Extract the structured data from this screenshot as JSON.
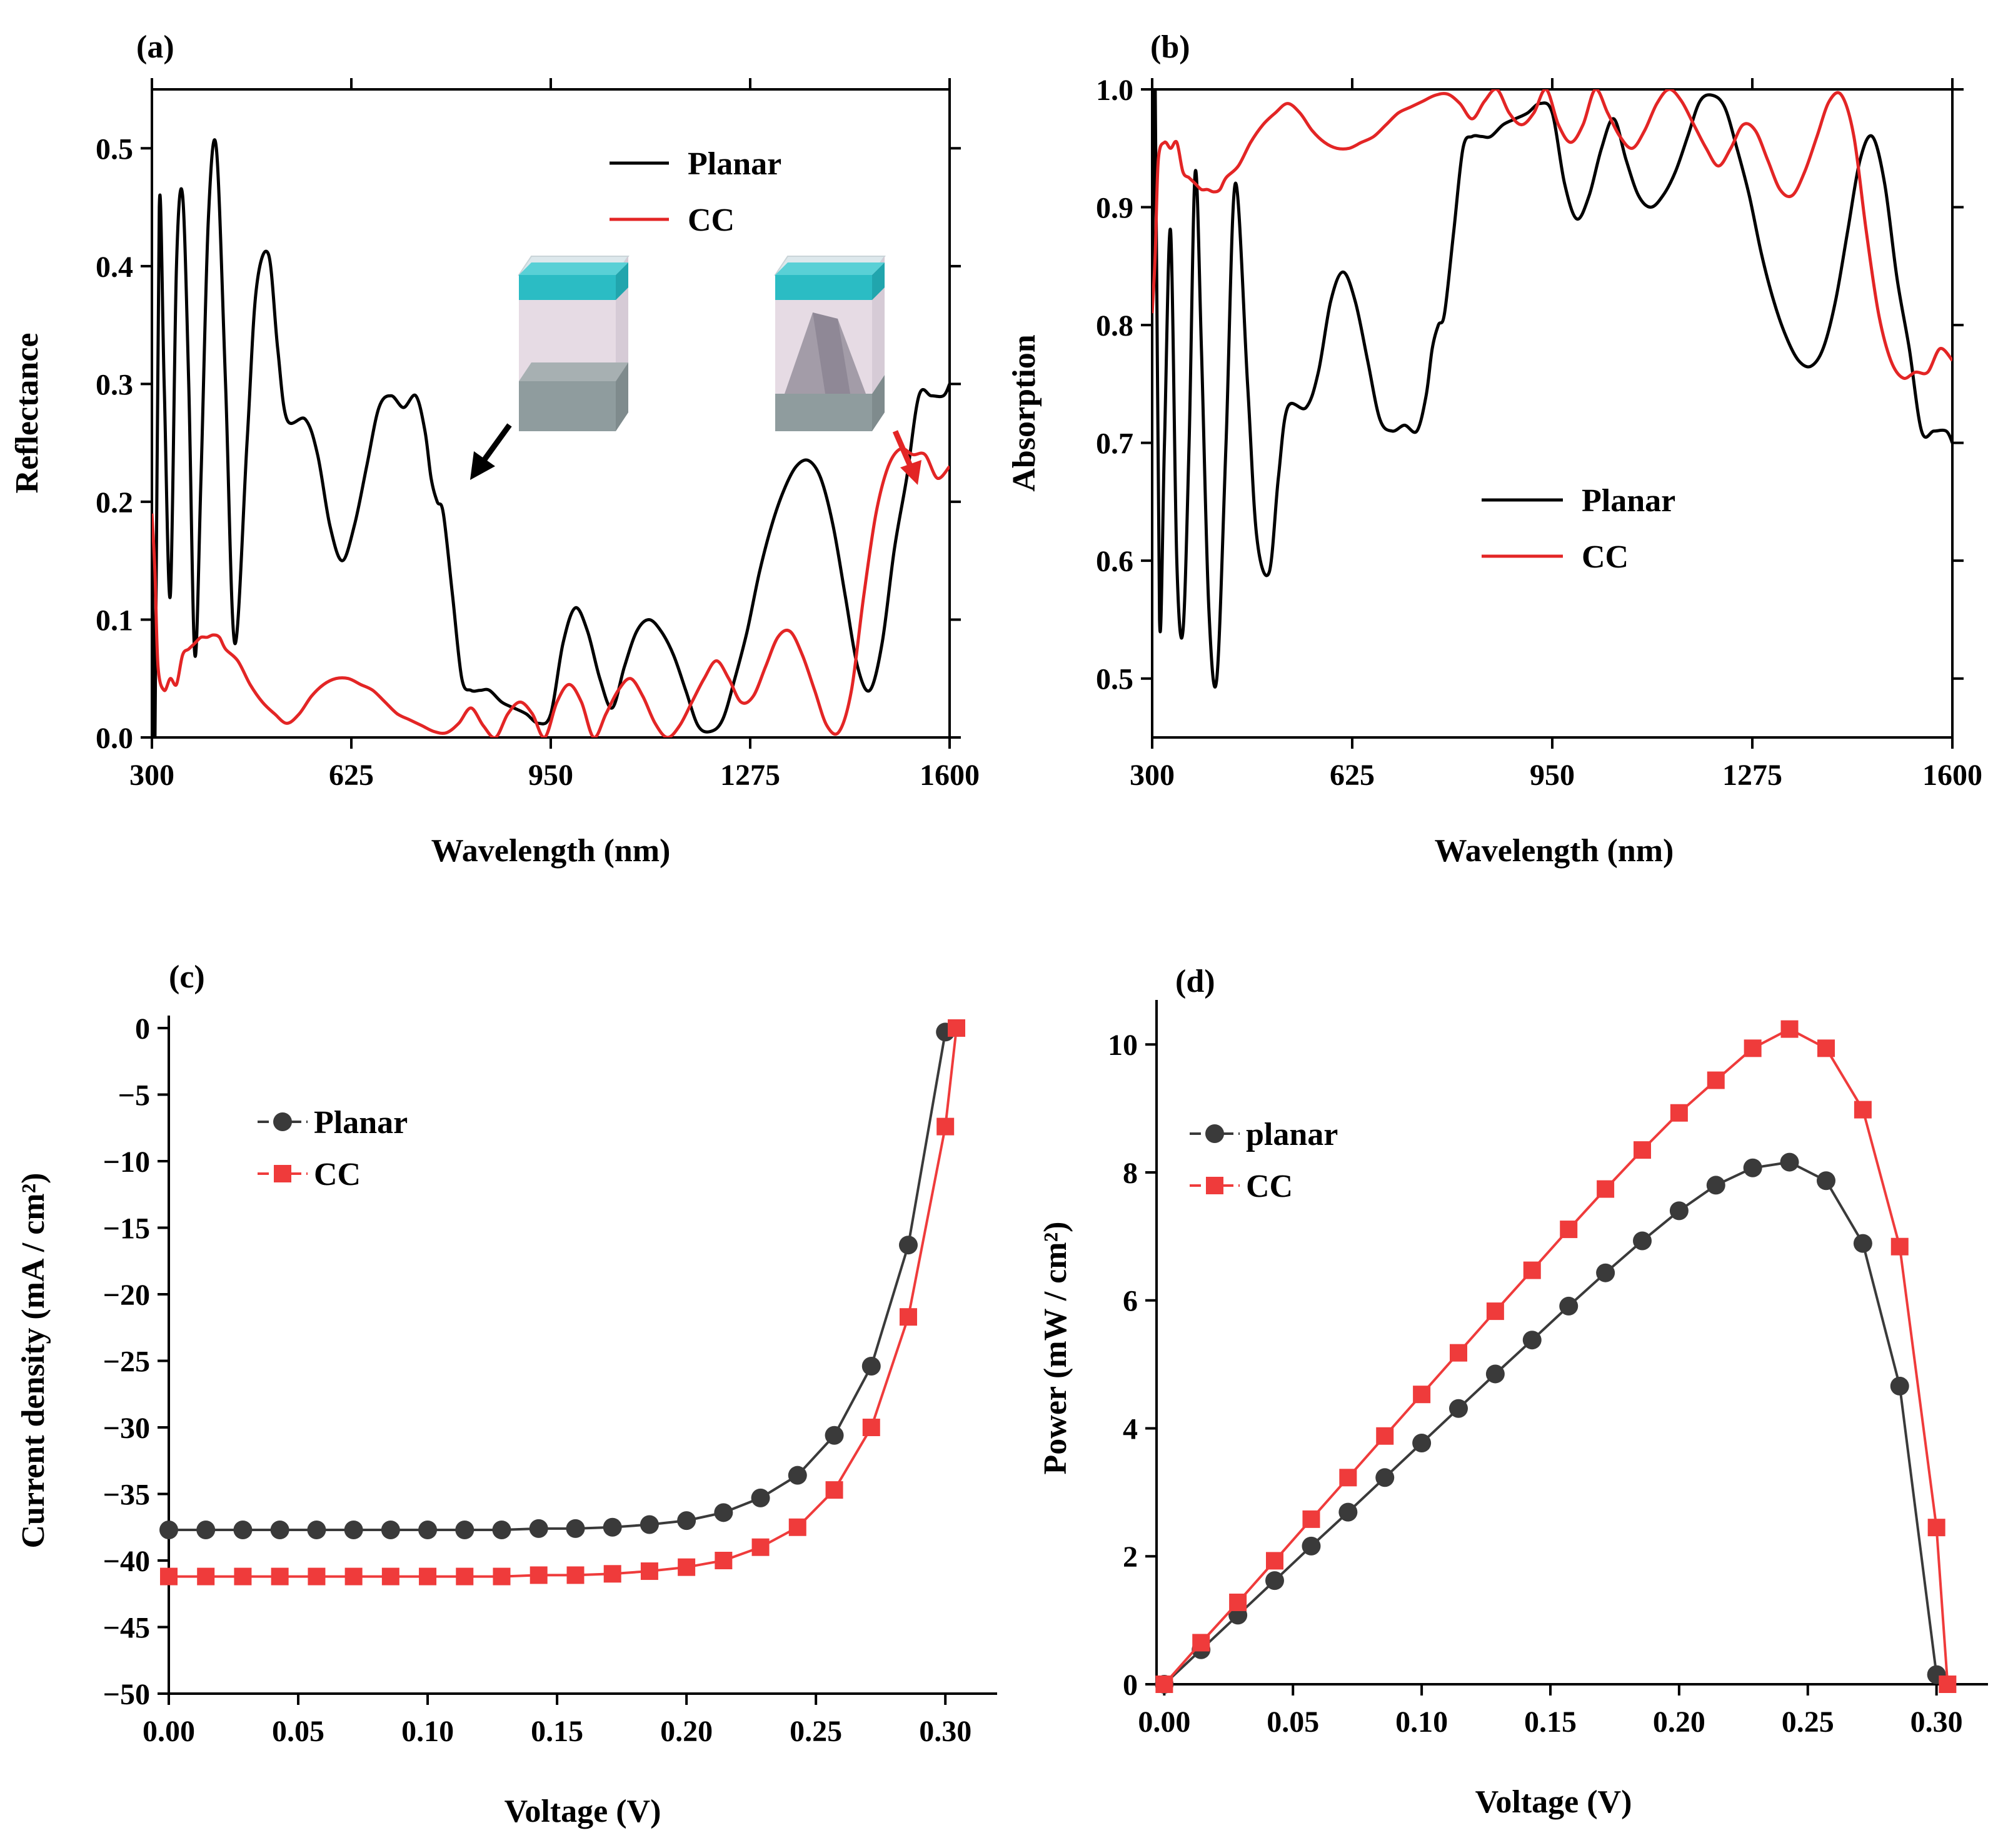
{
  "colors": {
    "planar": "#000000",
    "cc": "#e32525",
    "planar_jv": "#3a3a3a",
    "cc_jv": "#ef3b3b"
  },
  "icons": [
    "planar-cell-icon",
    "cc-cell-icon",
    "black-arrow-icon",
    "red-arrow-icon"
  ],
  "chart_data": [
    {
      "panel": "(a)",
      "type": "line",
      "xlabel": "Wavelength (nm)",
      "ylabel": "Reflectance",
      "xlim": [
        300,
        1600
      ],
      "ylim": [
        0,
        0.55
      ],
      "xticks": [
        300,
        625,
        950,
        1275,
        1600
      ],
      "yticks": [
        0.0,
        0.1,
        0.2,
        0.3,
        0.4,
        0.5
      ],
      "xtick_labels": [
        "300",
        "625",
        "950",
        "1275",
        "1600"
      ],
      "ytick_labels": [
        "0.0",
        "0.1",
        "0.2",
        "0.3",
        "0.4",
        "0.5"
      ],
      "legend": [
        "Planar",
        "CC"
      ],
      "series": [
        {
          "name": "Planar",
          "x": [
            300,
            305,
            312,
            320,
            330,
            340,
            350,
            360,
            370,
            380,
            392,
            405,
            420,
            435,
            455,
            470,
            490,
            505,
            520,
            550,
            570,
            590,
            610,
            630,
            650,
            670,
            690,
            710,
            730,
            745,
            755,
            765,
            775,
            790,
            805,
            820,
            835,
            850,
            870,
            890,
            910,
            930,
            950,
            970,
            990,
            1010,
            1030,
            1050,
            1070,
            1090,
            1110,
            1130,
            1150,
            1170,
            1190,
            1210,
            1230,
            1250,
            1270,
            1290,
            1310,
            1330,
            1350,
            1370,
            1390,
            1410,
            1430,
            1450,
            1470,
            1490,
            1510,
            1530,
            1550,
            1570,
            1590,
            1600
          ],
          "y": [
            0.19,
            0.0,
            0.45,
            0.3,
            0.12,
            0.4,
            0.46,
            0.3,
            0.07,
            0.22,
            0.44,
            0.5,
            0.3,
            0.08,
            0.25,
            0.38,
            0.41,
            0.33,
            0.27,
            0.27,
            0.24,
            0.18,
            0.15,
            0.18,
            0.23,
            0.28,
            0.29,
            0.28,
            0.29,
            0.26,
            0.22,
            0.2,
            0.19,
            0.12,
            0.05,
            0.04,
            0.04,
            0.04,
            0.03,
            0.025,
            0.02,
            0.012,
            0.02,
            0.08,
            0.11,
            0.09,
            0.05,
            0.025,
            0.06,
            0.09,
            0.1,
            0.09,
            0.07,
            0.04,
            0.01,
            0.005,
            0.015,
            0.05,
            0.09,
            0.14,
            0.18,
            0.21,
            0.23,
            0.235,
            0.22,
            0.18,
            0.12,
            0.06,
            0.04,
            0.08,
            0.16,
            0.22,
            0.29,
            0.29,
            0.29,
            0.3
          ]
        },
        {
          "name": "CC",
          "x": [
            300,
            305,
            310,
            320,
            330,
            340,
            350,
            360,
            370,
            380,
            390,
            400,
            410,
            420,
            440,
            460,
            480,
            500,
            520,
            540,
            560,
            580,
            600,
            620,
            640,
            660,
            680,
            700,
            720,
            740,
            760,
            780,
            800,
            820,
            840,
            860,
            880,
            900,
            920,
            940,
            960,
            980,
            1000,
            1020,
            1040,
            1060,
            1080,
            1100,
            1120,
            1140,
            1160,
            1180,
            1200,
            1220,
            1240,
            1260,
            1280,
            1300,
            1320,
            1340,
            1360,
            1380,
            1400,
            1420,
            1440,
            1460,
            1480,
            1500,
            1520,
            1540,
            1560,
            1580,
            1600
          ],
          "y": [
            0.19,
            0.14,
            0.06,
            0.04,
            0.05,
            0.045,
            0.07,
            0.075,
            0.08,
            0.085,
            0.085,
            0.087,
            0.085,
            0.075,
            0.065,
            0.045,
            0.03,
            0.02,
            0.012,
            0.02,
            0.035,
            0.045,
            0.05,
            0.05,
            0.045,
            0.04,
            0.03,
            0.02,
            0.015,
            0.01,
            0.005,
            0.004,
            0.012,
            0.025,
            0.01,
            0.0,
            0.02,
            0.03,
            0.02,
            0.0,
            0.03,
            0.045,
            0.03,
            0.0,
            0.02,
            0.04,
            0.05,
            0.035,
            0.012,
            0.0,
            0.01,
            0.03,
            0.05,
            0.065,
            0.05,
            0.03,
            0.035,
            0.06,
            0.085,
            0.09,
            0.07,
            0.04,
            0.01,
            0.005,
            0.04,
            0.12,
            0.19,
            0.23,
            0.245,
            0.24,
            0.24,
            0.22,
            0.23
          ]
        }
      ],
      "inset_annotation": "two unit-cell schematics (Planar and CC) with arrows"
    },
    {
      "panel": "(b)",
      "type": "line",
      "xlabel": "Wavelength (nm)",
      "ylabel": "Absorption",
      "xlim": [
        300,
        1600
      ],
      "ylim": [
        0.45,
        1.0
      ],
      "xticks": [
        300,
        625,
        950,
        1275,
        1600
      ],
      "yticks": [
        0.5,
        0.6,
        0.7,
        0.8,
        0.9,
        1.0
      ],
      "xtick_labels": [
        "300",
        "625",
        "950",
        "1275",
        "1600"
      ],
      "ytick_labels": [
        "0.5",
        "0.6",
        "0.7",
        "0.8",
        "0.9",
        "1.0"
      ],
      "legend": [
        "Planar",
        "CC"
      ],
      "series": [
        {
          "name": "Planar",
          "x": [
            300,
            305,
            312,
            320,
            330,
            340,
            350,
            360,
            370,
            380,
            392,
            405,
            420,
            435,
            455,
            470,
            490,
            505,
            520,
            550,
            570,
            590,
            610,
            630,
            650,
            670,
            690,
            710,
            730,
            745,
            755,
            765,
            775,
            790,
            805,
            820,
            835,
            850,
            870,
            890,
            910,
            930,
            950,
            970,
            990,
            1010,
            1030,
            1050,
            1070,
            1090,
            1110,
            1130,
            1150,
            1170,
            1190,
            1210,
            1230,
            1250,
            1270,
            1290,
            1310,
            1330,
            1350,
            1370,
            1390,
            1410,
            1430,
            1450,
            1470,
            1490,
            1510,
            1530,
            1550,
            1570,
            1590,
            1600
          ],
          "y": [
            0.81,
            1.0,
            0.55,
            0.7,
            0.88,
            0.6,
            0.54,
            0.7,
            0.93,
            0.78,
            0.56,
            0.5,
            0.7,
            0.92,
            0.75,
            0.62,
            0.59,
            0.67,
            0.73,
            0.73,
            0.76,
            0.82,
            0.845,
            0.82,
            0.77,
            0.72,
            0.71,
            0.715,
            0.71,
            0.74,
            0.78,
            0.8,
            0.81,
            0.88,
            0.95,
            0.96,
            0.96,
            0.96,
            0.97,
            0.975,
            0.98,
            0.988,
            0.98,
            0.92,
            0.89,
            0.91,
            0.95,
            0.975,
            0.94,
            0.91,
            0.9,
            0.91,
            0.93,
            0.96,
            0.99,
            0.995,
            0.985,
            0.95,
            0.91,
            0.86,
            0.82,
            0.79,
            0.77,
            0.765,
            0.78,
            0.82,
            0.88,
            0.94,
            0.96,
            0.92,
            0.84,
            0.78,
            0.71,
            0.71,
            0.71,
            0.7
          ]
        },
        {
          "name": "CC",
          "x": [
            300,
            305,
            310,
            320,
            330,
            340,
            350,
            360,
            370,
            380,
            390,
            400,
            410,
            420,
            440,
            460,
            480,
            500,
            520,
            540,
            560,
            580,
            600,
            620,
            640,
            660,
            680,
            700,
            720,
            740,
            760,
            780,
            800,
            820,
            840,
            860,
            880,
            900,
            920,
            940,
            960,
            980,
            1000,
            1020,
            1040,
            1060,
            1080,
            1100,
            1120,
            1140,
            1160,
            1180,
            1200,
            1220,
            1240,
            1260,
            1280,
            1300,
            1320,
            1340,
            1360,
            1380,
            1400,
            1420,
            1440,
            1460,
            1480,
            1500,
            1520,
            1540,
            1560,
            1580,
            1600
          ],
          "y": [
            0.81,
            0.86,
            0.94,
            0.955,
            0.95,
            0.955,
            0.93,
            0.925,
            0.92,
            0.915,
            0.915,
            0.913,
            0.915,
            0.925,
            0.935,
            0.955,
            0.97,
            0.98,
            0.988,
            0.98,
            0.965,
            0.955,
            0.95,
            0.95,
            0.955,
            0.96,
            0.97,
            0.98,
            0.985,
            0.99,
            0.995,
            0.996,
            0.988,
            0.975,
            0.99,
            1.0,
            0.98,
            0.97,
            0.98,
            1.0,
            0.97,
            0.955,
            0.97,
            1.0,
            0.98,
            0.96,
            0.95,
            0.965,
            0.988,
            1.0,
            0.99,
            0.97,
            0.95,
            0.935,
            0.95,
            0.97,
            0.965,
            0.94,
            0.915,
            0.91,
            0.93,
            0.96,
            0.99,
            0.995,
            0.96,
            0.88,
            0.81,
            0.77,
            0.755,
            0.76,
            0.76,
            0.78,
            0.77
          ]
        }
      ]
    },
    {
      "panel": "(c)",
      "type": "line",
      "xlabel": "Voltage (V)",
      "ylabel": "Current density (mA / cm²)",
      "xlim": [
        0,
        0.32
      ],
      "ylim": [
        -50,
        0
      ],
      "xticks": [
        0.0,
        0.05,
        0.1,
        0.15,
        0.2,
        0.25,
        0.3
      ],
      "yticks": [
        0,
        -5,
        -10,
        -15,
        -20,
        -25,
        -30,
        -35,
        -40,
        -45,
        -50
      ],
      "xtick_labels": [
        "0.00",
        "0.05",
        "0.10",
        "0.15",
        "0.20",
        "0.25",
        "0.30"
      ],
      "ytick_labels": [
        "0",
        "−5",
        "−10",
        "−15",
        "−20",
        "−25",
        "−30",
        "−35",
        "−40",
        "−45",
        "−50"
      ],
      "legend": [
        "Planar",
        "CC"
      ],
      "series": [
        {
          "name": "Planar",
          "marker": "circle",
          "x": [
            0.0,
            0.0143,
            0.0286,
            0.0429,
            0.0571,
            0.0714,
            0.0857,
            0.1,
            0.1143,
            0.1286,
            0.1429,
            0.1571,
            0.1714,
            0.1857,
            0.2,
            0.2143,
            0.2286,
            0.2429,
            0.2571,
            0.2714,
            0.2857,
            0.3
          ],
          "y": [
            -37.7,
            -37.7,
            -37.7,
            -37.7,
            -37.7,
            -37.7,
            -37.7,
            -37.7,
            -37.7,
            -37.7,
            -37.6,
            -37.6,
            -37.5,
            -37.3,
            -37.0,
            -36.4,
            -35.3,
            -33.6,
            -30.6,
            -25.4,
            -16.3,
            -0.3
          ]
        },
        {
          "name": "CC",
          "marker": "square",
          "x": [
            0.0,
            0.0143,
            0.0286,
            0.0429,
            0.0571,
            0.0714,
            0.0857,
            0.1,
            0.1143,
            0.1286,
            0.1429,
            0.1571,
            0.1714,
            0.1857,
            0.2,
            0.2143,
            0.2286,
            0.2429,
            0.2571,
            0.2714,
            0.2857,
            0.3,
            0.3043
          ],
          "y": [
            -41.2,
            -41.2,
            -41.2,
            -41.2,
            -41.2,
            -41.2,
            -41.2,
            -41.2,
            -41.2,
            -41.2,
            -41.1,
            -41.1,
            -41.0,
            -40.8,
            -40.5,
            -40.0,
            -39.0,
            -37.5,
            -34.7,
            -30.0,
            -21.7,
            -7.4,
            0.0
          ]
        }
      ]
    },
    {
      "panel": "(d)",
      "type": "line",
      "xlabel": "Voltage (V)",
      "ylabel": "Power (mW / cm²)",
      "xlim": [
        -0.003,
        0.32
      ],
      "ylim": [
        0,
        10.5
      ],
      "xticks": [
        0.0,
        0.05,
        0.1,
        0.15,
        0.2,
        0.25,
        0.3
      ],
      "yticks": [
        0,
        2,
        4,
        6,
        8,
        10
      ],
      "xtick_labels": [
        "0.00",
        "0.05",
        "0.10",
        "0.15",
        "0.20",
        "0.25",
        "0.30"
      ],
      "ytick_labels": [
        "0",
        "2",
        "4",
        "6",
        "8",
        "10"
      ],
      "legend": [
        "planar",
        "CC"
      ],
      "series": [
        {
          "name": "planar",
          "marker": "circle",
          "x": [
            0.0,
            0.0143,
            0.0286,
            0.0429,
            0.0571,
            0.0714,
            0.0857,
            0.1,
            0.1143,
            0.1286,
            0.1429,
            0.1571,
            0.1714,
            0.1857,
            0.2,
            0.2143,
            0.2286,
            0.2429,
            0.2571,
            0.2714,
            0.2857,
            0.3
          ],
          "y": [
            0,
            0.54,
            1.08,
            1.62,
            2.16,
            2.69,
            3.23,
            3.77,
            4.31,
            4.85,
            5.38,
            5.91,
            6.43,
            6.93,
            7.4,
            7.8,
            8.07,
            8.16,
            7.87,
            6.89,
            4.66,
            0.15
          ]
        },
        {
          "name": "CC",
          "marker": "square",
          "x": [
            0.0,
            0.0143,
            0.0286,
            0.0429,
            0.0571,
            0.0714,
            0.0857,
            0.1,
            0.1143,
            0.1286,
            0.1429,
            0.1571,
            0.1714,
            0.1857,
            0.2,
            0.2143,
            0.2286,
            0.2429,
            0.2571,
            0.2714,
            0.2857,
            0.3,
            0.3043
          ],
          "y": [
            0,
            0.65,
            1.28,
            1.93,
            2.58,
            3.23,
            3.88,
            4.53,
            5.18,
            5.83,
            6.47,
            7.11,
            7.74,
            8.35,
            8.93,
            9.44,
            9.94,
            10.24,
            9.94,
            8.98,
            6.84,
            2.45,
            0.0
          ]
        }
      ]
    }
  ]
}
